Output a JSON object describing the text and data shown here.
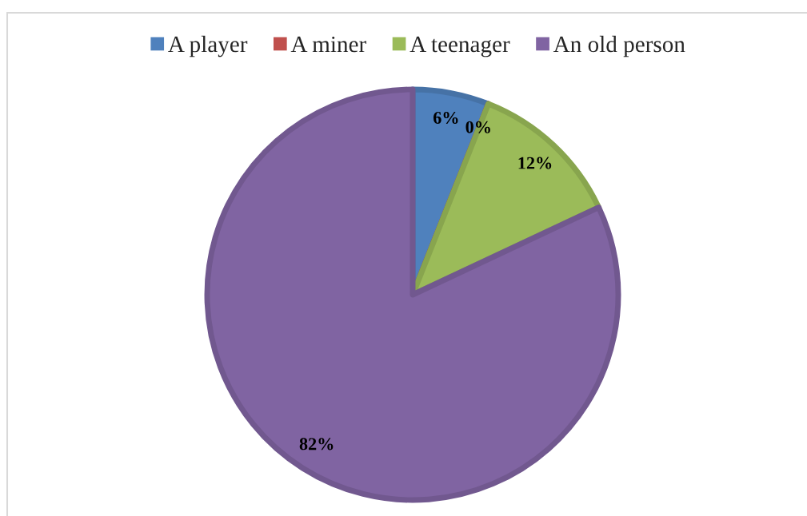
{
  "chart_data": {
    "type": "pie",
    "categories": [
      "A player",
      "A miner",
      "A teenager",
      "An old person"
    ],
    "values": [
      6,
      0,
      12,
      82
    ],
    "colors": [
      "#4f81bd",
      "#c0504d",
      "#9bbb59",
      "#8064a2"
    ],
    "value_labels": [
      "6%",
      "0%",
      "12%",
      "82%"
    ],
    "legend": "top"
  }
}
